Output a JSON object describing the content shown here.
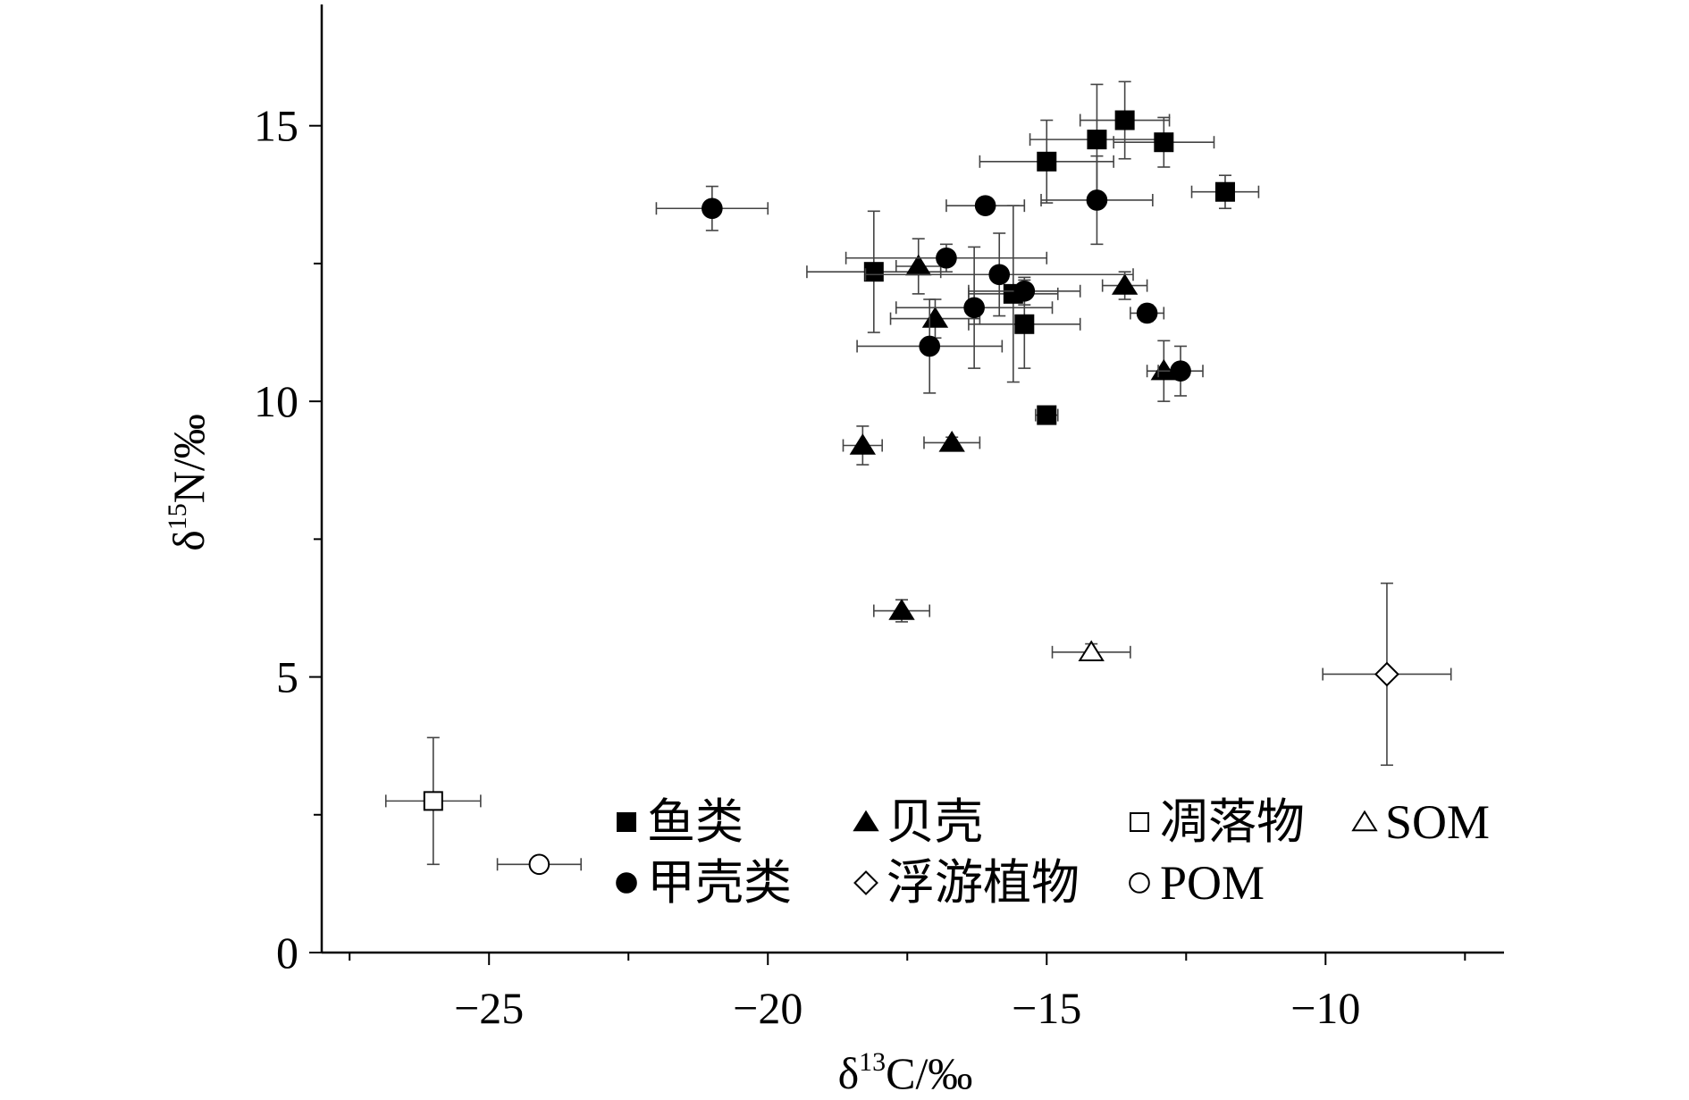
{
  "chart_data": {
    "type": "scatter",
    "xlabel_parts": [
      "δ",
      "13",
      "C/‰"
    ],
    "ylabel_parts": [
      "δ",
      "15",
      "N/‰"
    ],
    "xlim": [
      -28,
      -6.8
    ],
    "ylim": [
      0,
      17.2
    ],
    "x_ticks": [
      -25,
      -20,
      -15,
      -10
    ],
    "y_ticks": [
      0,
      5,
      10,
      15
    ],
    "x_tick_labels": [
      "−25",
      "−20",
      "−15",
      "−10"
    ],
    "y_tick_labels": [
      "0",
      "5",
      "10",
      "15"
    ],
    "grid": false,
    "legend_position": "bottom",
    "series": [
      {
        "name": "鱼类",
        "marker": "square",
        "fill": "#000000",
        "points": [
          {
            "x": -13.6,
            "y": 15.1,
            "xerr": 0.8,
            "yerr": 0.7
          },
          {
            "x": -14.1,
            "y": 14.75,
            "xerr": 1.2,
            "yerr": 1.0
          },
          {
            "x": -12.9,
            "y": 14.7,
            "xerr": 0.9,
            "yerr": 0.45
          },
          {
            "x": -15.0,
            "y": 14.35,
            "xerr": 1.2,
            "yerr": 0.75
          },
          {
            "x": -11.8,
            "y": 13.8,
            "xerr": 0.6,
            "yerr": 0.3
          },
          {
            "x": -18.1,
            "y": 12.35,
            "xerr": 1.2,
            "yerr": 1.1
          },
          {
            "x": -15.6,
            "y": 11.95,
            "xerr": 0.8,
            "yerr": 1.6
          },
          {
            "x": -15.4,
            "y": 11.4,
            "xerr": 1.0,
            "yerr": 0.8
          },
          {
            "x": -15.0,
            "y": 9.75,
            "xerr": 0.2,
            "yerr": 0.15
          }
        ]
      },
      {
        "name": "贝壳",
        "marker": "triangle",
        "fill": "#000000",
        "points": [
          {
            "x": -17.3,
            "y": 12.45,
            "xerr": 0.4,
            "yerr": 0.5
          },
          {
            "x": -13.6,
            "y": 12.1,
            "xerr": 0.4,
            "yerr": 0.25
          },
          {
            "x": -17.0,
            "y": 11.5,
            "xerr": 0.8,
            "yerr": 0.35
          },
          {
            "x": -12.9,
            "y": 10.55,
            "xerr": 0.3,
            "yerr": 0.55
          },
          {
            "x": -18.3,
            "y": 9.2,
            "xerr": 0.35,
            "yerr": 0.35
          },
          {
            "x": -16.7,
            "y": 9.25,
            "xerr": 0.5,
            "yerr": 0.1
          },
          {
            "x": -17.6,
            "y": 6.2,
            "xerr": 0.5,
            "yerr": 0.2
          }
        ]
      },
      {
        "name": "甲壳类",
        "marker": "circle",
        "fill": "#000000",
        "points": [
          {
            "x": -21.0,
            "y": 13.5,
            "xerr": 1.0,
            "yerr": 0.4
          },
          {
            "x": -16.1,
            "y": 13.55,
            "xerr": 0.7,
            "yerr": 0.1
          },
          {
            "x": -14.1,
            "y": 13.65,
            "xerr": 1.0,
            "yerr": 0.8
          },
          {
            "x": -16.8,
            "y": 12.6,
            "xerr": 1.8,
            "yerr": 0.25
          },
          {
            "x": -15.85,
            "y": 12.3,
            "xerr": 2.4,
            "yerr": 0.75
          },
          {
            "x": -15.4,
            "y": 12.0,
            "xerr": 1.0,
            "yerr": 0.25
          },
          {
            "x": -16.3,
            "y": 11.7,
            "xerr": 1.4,
            "yerr": 1.1
          },
          {
            "x": -13.2,
            "y": 11.6,
            "xerr": 0.3,
            "yerr": 0.15
          },
          {
            "x": -17.1,
            "y": 11.0,
            "xerr": 1.3,
            "yerr": 0.85
          },
          {
            "x": -12.6,
            "y": 10.55,
            "xerr": 0.4,
            "yerr": 0.45
          }
        ]
      },
      {
        "name": "浮游植物",
        "marker": "diamond",
        "fill": "#ffffff",
        "points": [
          {
            "x": -8.9,
            "y": 5.05,
            "xerr": 1.15,
            "yerr": 1.65
          }
        ]
      },
      {
        "name": "凋落物",
        "marker": "square",
        "fill": "#ffffff",
        "points": [
          {
            "x": -26.0,
            "y": 2.75,
            "xerr": 0.85,
            "yerr": 1.15
          }
        ]
      },
      {
        "name": "POM",
        "marker": "circle",
        "fill": "#ffffff",
        "points": [
          {
            "x": -24.1,
            "y": 1.6,
            "xerr": 0.75,
            "yerr": 0.05
          }
        ]
      },
      {
        "name": "SOM",
        "marker": "triangle",
        "fill": "#ffffff",
        "points": [
          {
            "x": -14.2,
            "y": 5.45,
            "xerr": 0.7,
            "yerr": 0.15
          }
        ]
      }
    ],
    "legend": {
      "rows": [
        [
          {
            "label": "鱼类",
            "marker": "square",
            "fill": "#000000"
          },
          {
            "label": "贝壳",
            "marker": "triangle",
            "fill": "#000000"
          },
          {
            "label": "凋落物",
            "marker": "square",
            "fill": "#ffffff"
          },
          {
            "label": "SOM",
            "marker": "triangle",
            "fill": "#ffffff"
          }
        ],
        [
          {
            "label": "甲壳类",
            "marker": "circle",
            "fill": "#000000"
          },
          {
            "label": "浮游植物",
            "marker": "diamond",
            "fill": "#ffffff"
          },
          {
            "label": "POM",
            "marker": "circle",
            "fill": "#ffffff"
          }
        ]
      ]
    }
  }
}
